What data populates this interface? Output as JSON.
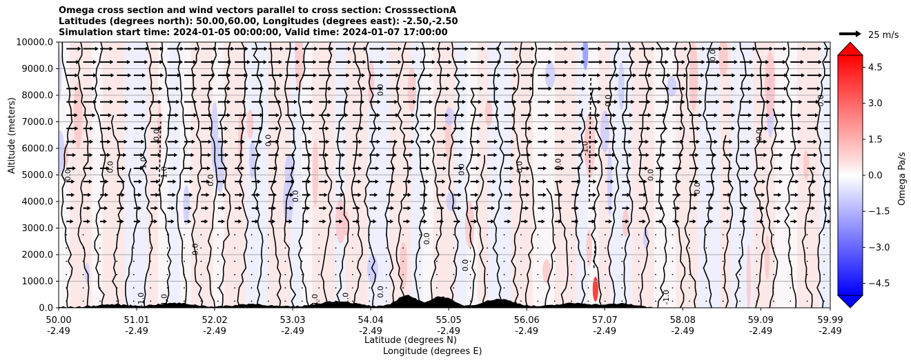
{
  "title": {
    "line1": "Omega cross section and wind vectors parallel to cross section: CrosssectionA",
    "line2": "Latitudes (degrees north): 50.00,60.00, Longitudes (degrees east): -2.50,-2.50",
    "line3": "Simulation start time: 2024-01-05 00:00:00, Valid time: 2024-01-07 17:00:00"
  },
  "chart_data": {
    "type": "heatmap",
    "ylabel": "Altitude (meters)",
    "xlabel_lat": "Latitude (degrees N)",
    "xlabel_lon": "Longitude (degrees E)",
    "ylim": [
      0,
      10000
    ],
    "xlim": [
      50.0,
      59.99
    ],
    "y_ticks": [
      "0.0",
      "1000.0",
      "2000.0",
      "3000.0",
      "4000.0",
      "5000.0",
      "6000.0",
      "7000.0",
      "8000.0",
      "9000.0",
      "10000.0"
    ],
    "x_ticks": [
      {
        "lat": "50.00",
        "lon": "-2.49",
        "value": 50.0
      },
      {
        "lat": "51.01",
        "lon": "-2.49",
        "value": 51.01
      },
      {
        "lat": "52.02",
        "lon": "-2.49",
        "value": 52.02
      },
      {
        "lat": "53.03",
        "lon": "-2.49",
        "value": 53.03
      },
      {
        "lat": "54.04",
        "lon": "-2.49",
        "value": 54.04
      },
      {
        "lat": "55.05",
        "lon": "-2.49",
        "value": 55.05
      },
      {
        "lat": "56.06",
        "lon": "-2.49",
        "value": 56.06
      },
      {
        "lat": "57.07",
        "lon": "-2.49",
        "value": 57.07
      },
      {
        "lat": "58.08",
        "lon": "-2.49",
        "value": 58.08
      },
      {
        "lat": "59.09",
        "lon": "-2.49",
        "value": 59.09
      },
      {
        "lat": "59.99",
        "lon": "-2.49",
        "value": 59.99
      }
    ],
    "colorbar": {
      "label": "Omega Pa/s",
      "range": [
        -5.0,
        5.0
      ],
      "ticks": [
        "4.5",
        "3.0",
        "1.5",
        "0.0",
        "−1.5",
        "−3.0",
        "−4.5"
      ],
      "tick_values": [
        4.5,
        3.0,
        1.5,
        0.0,
        -1.5,
        -3.0,
        -4.5
      ]
    },
    "quiver_key": "25 m/s",
    "contour_labels": [
      "0.0",
      "-1.0",
      "1.0"
    ],
    "contour_label_samples": [
      {
        "lat": 50.15,
        "alt": 5000,
        "text": "0.0"
      },
      {
        "lat": 50.7,
        "alt": 5300,
        "text": "0.0"
      },
      {
        "lat": 51.3,
        "alt": 6500,
        "text": "0.0"
      },
      {
        "lat": 51.13,
        "alt": 5400,
        "text": "-1.0"
      },
      {
        "lat": 51.4,
        "alt": 5100,
        "text": "1.0"
      },
      {
        "lat": 51.1,
        "alt": 300,
        "text": "-1.0"
      },
      {
        "lat": 51.4,
        "alt": 300,
        "text": "1.0"
      },
      {
        "lat": 52.0,
        "alt": 4800,
        "text": "0.0"
      },
      {
        "lat": 52.75,
        "alt": 6300,
        "text": "0.0"
      },
      {
        "lat": 53.1,
        "alt": 4200,
        "text": "0.0"
      },
      {
        "lat": 53.35,
        "alt": 300,
        "text": "1.0"
      },
      {
        "lat": 53.75,
        "alt": 300,
        "text": "-1.0"
      },
      {
        "lat": 54.2,
        "alt": 600,
        "text": "0.0"
      },
      {
        "lat": 54.2,
        "alt": 8200,
        "text": "0.0"
      },
      {
        "lat": 55.25,
        "alt": 5200,
        "text": "0.0"
      },
      {
        "lat": 56.0,
        "alt": 5300,
        "text": "0.0"
      },
      {
        "lat": 56.5,
        "alt": 5400,
        "text": "0.0"
      },
      {
        "lat": 56.85,
        "alt": 6000,
        "text": "-1.0"
      },
      {
        "lat": 57.15,
        "alt": 7800,
        "text": "0.0"
      },
      {
        "lat": 57.7,
        "alt": 5000,
        "text": "0.0"
      },
      {
        "lat": 58.3,
        "alt": 4500,
        "text": "0.0"
      },
      {
        "lat": 58.5,
        "alt": 9500,
        "text": "0.0"
      },
      {
        "lat": 59.1,
        "alt": 6500,
        "text": "0.0"
      },
      {
        "lat": 59.9,
        "alt": 7800,
        "text": "0.0"
      },
      {
        "lat": 57.9,
        "alt": 400,
        "text": "-1.0"
      },
      {
        "lat": 51.8,
        "alt": 2200,
        "text": "0.0"
      },
      {
        "lat": 54.8,
        "alt": 2600,
        "text": "0.0"
      },
      {
        "lat": 55.3,
        "alt": 1600,
        "text": "0.0"
      }
    ]
  },
  "colors": {
    "positive_light": "#fde8e8",
    "positive_mid": "#fcc6c6",
    "negative_light": "#eef0ff",
    "negative_mid": "#c9ccff",
    "grid": "#aaaaaa",
    "contour": "#000000",
    "terrain": "#000000"
  }
}
